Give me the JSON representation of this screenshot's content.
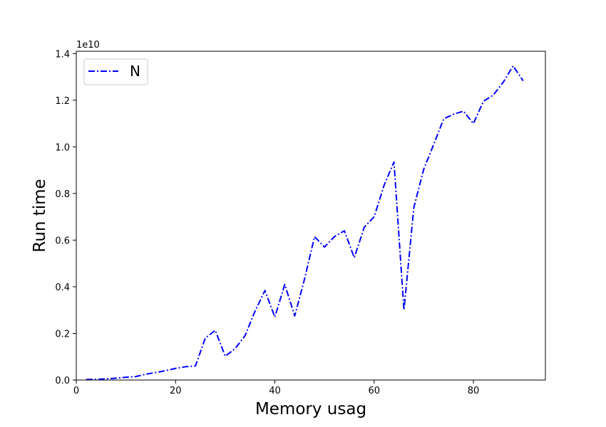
{
  "chart_data": {
    "type": "line",
    "title": "",
    "xlabel": "Memory usag",
    "ylabel": "Run time",
    "y_offset_label": "1e10",
    "xlim": [
      0,
      94.5
    ],
    "ylim": [
      0,
      1.41
    ],
    "x_ticks": [
      0,
      20,
      40,
      60,
      80
    ],
    "y_ticks": [
      0.0,
      0.2,
      0.4,
      0.6,
      0.8,
      1.0,
      1.2,
      1.4
    ],
    "x_tick_labels": [
      "0",
      "20",
      "40",
      "60",
      "80"
    ],
    "y_tick_labels": [
      "0.0",
      "0.2",
      "0.4",
      "0.6",
      "0.8",
      "1.0",
      "1.2",
      "1.4"
    ],
    "grid": false,
    "legend_position": "top-left",
    "series": [
      {
        "name": "N",
        "color": "#0000ff",
        "line_style": "dash-dot",
        "x": [
          2,
          4,
          6,
          8,
          10,
          12,
          14,
          16,
          18,
          20,
          22,
          24,
          26,
          28,
          30,
          32,
          34,
          36,
          38,
          40,
          42,
          44,
          46,
          48,
          50,
          52,
          54,
          56,
          58,
          60,
          62,
          64,
          66,
          68,
          70,
          72,
          74,
          76,
          78,
          80,
          82,
          84,
          86,
          88,
          90
        ],
        "y": [
          0.002,
          0.003,
          0.005,
          0.008,
          0.012,
          0.015,
          0.025,
          0.032,
          0.04,
          0.05,
          0.057,
          0.06,
          0.18,
          0.213,
          0.102,
          0.135,
          0.19,
          0.295,
          0.384,
          0.27,
          0.41,
          0.275,
          0.435,
          0.615,
          0.57,
          0.615,
          0.64,
          0.525,
          0.655,
          0.7,
          0.835,
          0.935,
          0.3,
          0.74,
          0.905,
          1.01,
          1.12,
          1.14,
          1.153,
          1.1,
          1.195,
          1.222,
          1.277,
          1.347,
          1.283
        ]
      }
    ]
  }
}
